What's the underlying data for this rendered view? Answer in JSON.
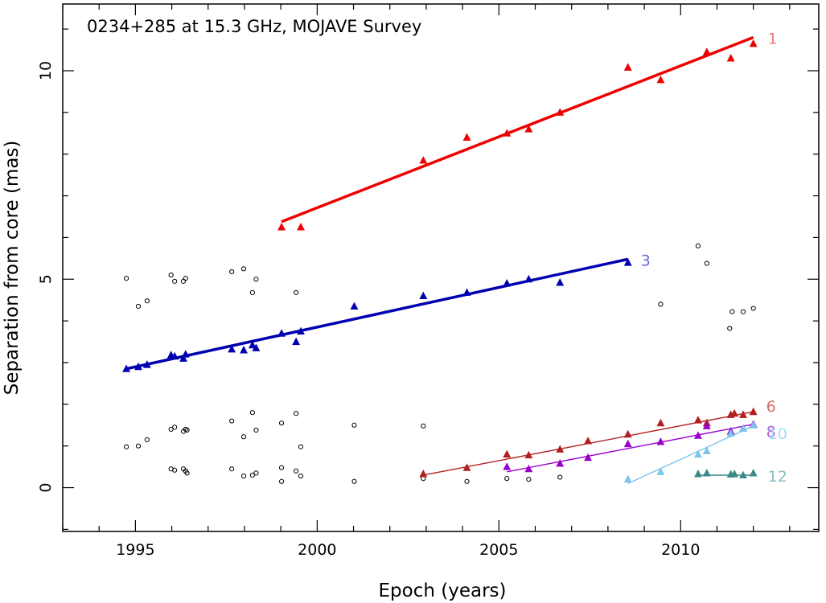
{
  "chart_data": {
    "type": "scatter",
    "title": "0234+285 at 15.3 GHz, MOJAVE Survey",
    "xlabel": "Epoch (years)",
    "ylabel": "Separation from core (mas)",
    "xlim": [
      1993.0,
      2013.8
    ],
    "ylim": [
      -1.05,
      11.6
    ],
    "xticks": [
      1995,
      2000,
      2005,
      2010
    ],
    "yticks": [
      0,
      5,
      10
    ],
    "xtick_labels": [
      "1995",
      "2000",
      "2005",
      "2010"
    ],
    "ytick_labels": [
      "0",
      "5",
      "10"
    ],
    "unassigned": {
      "color": "#000000",
      "x": [
        1994.75,
        1995.08,
        1995.32,
        1995.98,
        1996.08,
        1996.32,
        1996.38,
        1997.65,
        1997.98,
        1998.22,
        1998.32,
        1999.42,
        2010.48,
        2010.72,
        2009.45,
        2011.42,
        2011.72,
        2012.0,
        2011.35,
        1994.75,
        1995.08,
        1995.32,
        1995.98,
        1996.08,
        1996.32,
        1996.38,
        1996.42,
        1997.65,
        1997.98,
        1998.22,
        1998.32,
        1999.02,
        1999.42,
        1999.55,
        2001.02,
        2002.92,
        1995.98,
        1996.08,
        1996.32,
        1996.38,
        1996.42,
        1997.65,
        1997.98,
        1998.22,
        1998.32,
        1999.02,
        1999.42,
        1999.55,
        1999.02,
        2001.02,
        2002.92,
        2004.12,
        2005.22,
        2005.82,
        2006.68
      ],
      "y": [
        5.02,
        4.35,
        4.48,
        5.1,
        4.95,
        4.95,
        5.02,
        5.18,
        5.25,
        4.68,
        5.0,
        4.68,
        5.8,
        5.38,
        4.4,
        4.22,
        4.22,
        4.3,
        3.82,
        0.98,
        1.0,
        1.15,
        1.4,
        1.45,
        1.35,
        1.4,
        1.38,
        1.6,
        1.22,
        1.8,
        1.38,
        1.55,
        1.78,
        0.98,
        1.5,
        1.48,
        0.45,
        0.42,
        0.45,
        0.4,
        0.35,
        0.45,
        0.28,
        0.3,
        0.35,
        0.48,
        0.4,
        0.28,
        0.15,
        0.15,
        0.22,
        0.15,
        0.22,
        0.2,
        0.25
      ]
    },
    "series": [
      {
        "name": "1",
        "color": "#ee0000",
        "line_width": 3.5,
        "x": [
          1999.02,
          1999.55,
          2002.92,
          2004.12,
          2005.22,
          2005.82,
          2006.68,
          2008.55,
          2009.45,
          2010.72,
          2011.38,
          2012.0
        ],
        "y": [
          6.25,
          6.25,
          7.85,
          8.4,
          8.5,
          8.6,
          9.0,
          10.08,
          9.78,
          10.45,
          10.3,
          10.65
        ],
        "fit_x": [
          1999.02,
          2012.0
        ],
        "fit_y": [
          6.38,
          10.8
        ]
      },
      {
        "name": "3",
        "color": "#0000b0",
        "line_width": 3.5,
        "x": [
          1994.75,
          1995.08,
          1995.32,
          1995.98,
          1996.08,
          1996.32,
          1996.38,
          1997.65,
          1997.98,
          1998.22,
          1998.32,
          1999.02,
          1999.42,
          1999.55,
          2001.02,
          2002.92,
          2004.12,
          2005.22,
          2005.82,
          2006.68,
          2008.55
        ],
        "y": [
          2.85,
          2.9,
          2.95,
          3.18,
          3.15,
          3.1,
          3.2,
          3.32,
          3.3,
          3.42,
          3.35,
          3.7,
          3.5,
          3.75,
          4.35,
          4.6,
          4.68,
          4.9,
          5.0,
          4.92,
          5.4
        ],
        "fit_x": [
          1994.75,
          2008.55
        ],
        "fit_y": [
          2.85,
          5.48
        ]
      },
      {
        "name": "6",
        "color": "#b02020",
        "line_width": 1.4,
        "x": [
          2002.92,
          2004.12,
          2005.22,
          2005.82,
          2006.68,
          2007.45,
          2008.55,
          2009.45,
          2010.48,
          2010.72,
          2011.38,
          2011.48,
          2011.72,
          2012.0
        ],
        "y": [
          0.33,
          0.48,
          0.8,
          0.78,
          0.92,
          1.12,
          1.28,
          1.55,
          1.62,
          1.55,
          1.75,
          1.78,
          1.75,
          1.82
        ],
        "fit_x": [
          2002.92,
          2012.0
        ],
        "fit_y": [
          0.3,
          1.82
        ]
      },
      {
        "name": "8",
        "color": "#9900cc",
        "line_width": 1.4,
        "x": [
          2005.22,
          2005.82,
          2006.68,
          2007.45,
          2008.55,
          2009.45,
          2010.48,
          2010.72,
          2011.38,
          2011.72,
          2012.0
        ],
        "y": [
          0.5,
          0.45,
          0.58,
          0.72,
          1.05,
          1.1,
          1.25,
          1.48,
          1.35,
          1.42,
          1.52
        ],
        "fit_x": [
          2005.22,
          2012.0
        ],
        "fit_y": [
          0.38,
          1.52
        ]
      },
      {
        "name": "10",
        "color": "#7cc4ec",
        "line_width": 1.4,
        "x": [
          2008.55,
          2009.45,
          2010.48,
          2010.72,
          2011.38,
          2011.72,
          2012.0
        ],
        "y": [
          0.2,
          0.38,
          0.8,
          0.88,
          1.3,
          1.42,
          1.5
        ],
        "fit_x": [
          2008.55,
          2012.0
        ],
        "fit_y": [
          0.1,
          1.48
        ]
      },
      {
        "name": "12",
        "color": "#3a8a8a",
        "line_width": 1.4,
        "x": [
          2010.48,
          2010.72,
          2011.38,
          2011.48,
          2011.72,
          2012.0
        ],
        "y": [
          0.33,
          0.35,
          0.32,
          0.33,
          0.3,
          0.35
        ],
        "fit_x": [
          2010.48,
          2012.0
        ],
        "fit_y": [
          0.3,
          0.3
        ]
      }
    ],
    "series_label_colors": {
      "1": "#f07a7a",
      "3": "#6a6ad8",
      "6": "#d96a6a",
      "8": "#b060d8",
      "10": "#a8dcf4",
      "12": "#8ac0c0"
    }
  }
}
